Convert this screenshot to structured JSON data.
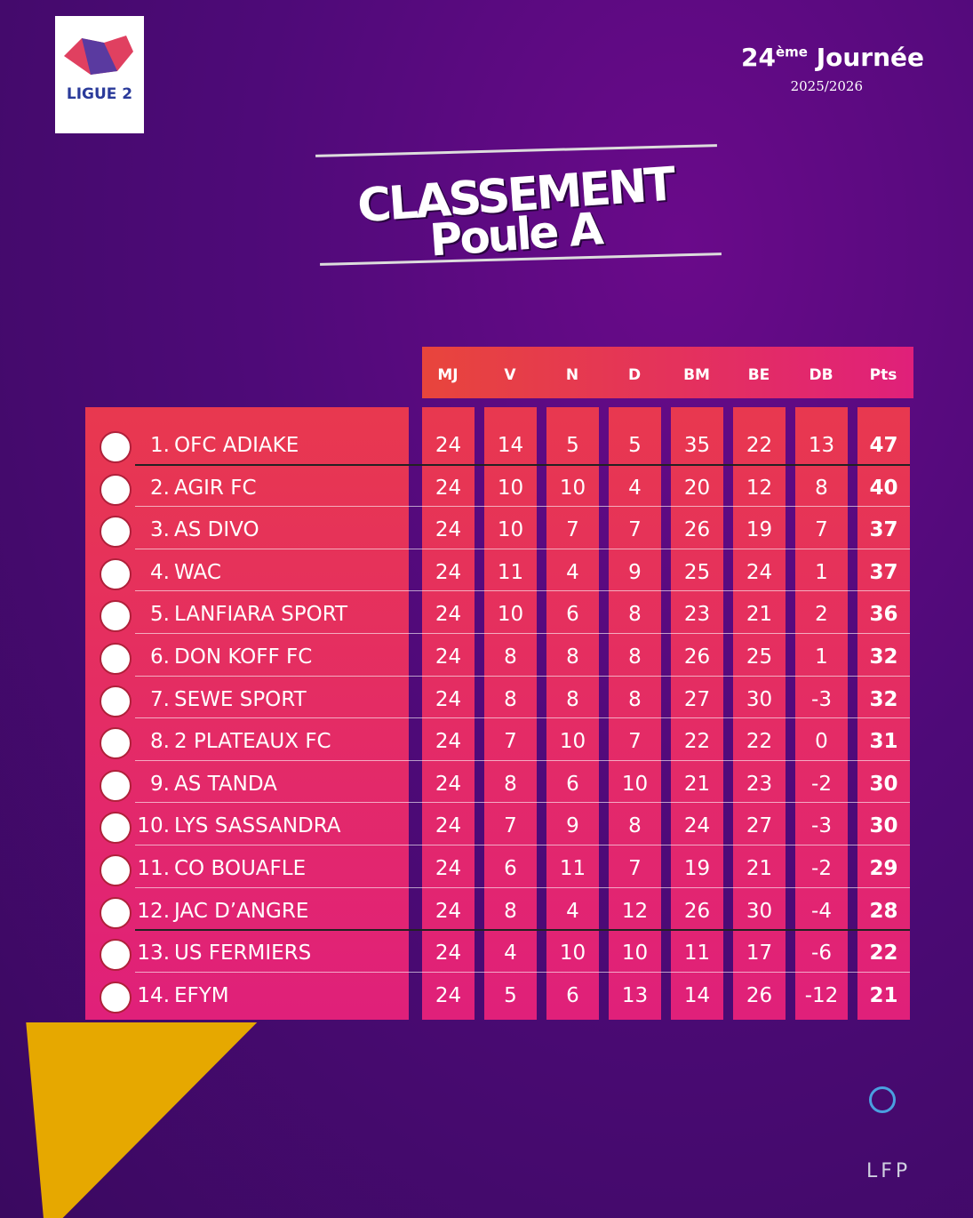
{
  "header": {
    "logo_text": "LIGUE 2",
    "round": {
      "number": "24",
      "suffix": "ème",
      "label": "Journée"
    },
    "season": "2025/2026"
  },
  "title": {
    "line1": "CLASSEMENT",
    "line2": "Poule A"
  },
  "table": {
    "columns": [
      "MJ",
      "V",
      "N",
      "D",
      "BM",
      "BE",
      "DB",
      "Pts"
    ],
    "rows": [
      {
        "rank": "1.",
        "team": "OFC ADIAKE",
        "stats": [
          24,
          14,
          5,
          5,
          35,
          22,
          13,
          47
        ]
      },
      {
        "rank": "2.",
        "team": "AGIR FC",
        "stats": [
          24,
          10,
          10,
          4,
          20,
          12,
          8,
          40
        ]
      },
      {
        "rank": "3.",
        "team": "AS DIVO",
        "stats": [
          24,
          10,
          7,
          7,
          26,
          19,
          7,
          37
        ]
      },
      {
        "rank": "4.",
        "team": "WAC",
        "stats": [
          24,
          11,
          4,
          9,
          25,
          24,
          1,
          37
        ]
      },
      {
        "rank": "5.",
        "team": "LANFIARA SPORT",
        "stats": [
          24,
          10,
          6,
          8,
          23,
          21,
          2,
          36
        ]
      },
      {
        "rank": "6.",
        "team": "DON KOFF FC",
        "stats": [
          24,
          8,
          8,
          8,
          26,
          25,
          1,
          32
        ]
      },
      {
        "rank": "7.",
        "team": "SEWE SPORT",
        "stats": [
          24,
          8,
          8,
          8,
          27,
          30,
          -3,
          32
        ]
      },
      {
        "rank": "8.",
        "team": "2 PLATEAUX FC",
        "stats": [
          24,
          7,
          10,
          7,
          22,
          22,
          0,
          31
        ]
      },
      {
        "rank": "9.",
        "team": "AS TANDA",
        "stats": [
          24,
          8,
          6,
          10,
          21,
          23,
          -2,
          30
        ]
      },
      {
        "rank": "10.",
        "team": "LYS SASSANDRA",
        "stats": [
          24,
          7,
          9,
          8,
          24,
          27,
          -3,
          30
        ]
      },
      {
        "rank": "11.",
        "team": "CO BOUAFLE",
        "stats": [
          24,
          6,
          11,
          7,
          19,
          21,
          -2,
          29
        ]
      },
      {
        "rank": "12.",
        "team": "JAC D’ANGRE",
        "stats": [
          24,
          8,
          4,
          12,
          26,
          30,
          -4,
          28
        ]
      },
      {
        "rank": "13.",
        "team": "US FERMIERS",
        "stats": [
          24,
          4,
          10,
          10,
          11,
          17,
          -6,
          22
        ]
      },
      {
        "rank": "14.",
        "team": "EFYM",
        "stats": [
          24,
          5,
          6,
          13,
          14,
          26,
          -12,
          21
        ]
      }
    ]
  },
  "footer": {
    "logo_text": "LFP"
  }
}
